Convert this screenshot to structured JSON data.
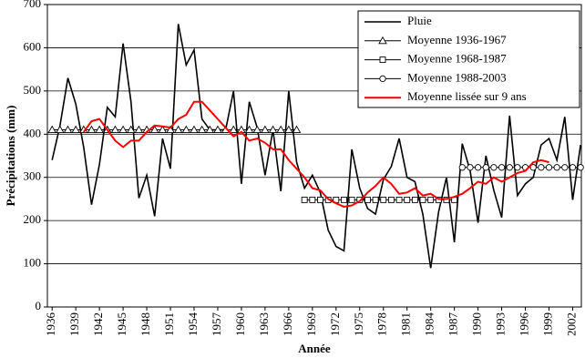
{
  "chart_data": {
    "type": "line",
    "x_label": "Année",
    "y_label": "Précipitations (mm)",
    "x": [
      1936,
      1937,
      1938,
      1939,
      1940,
      1941,
      1942,
      1943,
      1944,
      1945,
      1946,
      1947,
      1948,
      1949,
      1950,
      1951,
      1952,
      1953,
      1954,
      1955,
      1956,
      1957,
      1958,
      1959,
      1960,
      1961,
      1962,
      1963,
      1964,
      1965,
      1966,
      1967,
      1968,
      1969,
      1970,
      1971,
      1972,
      1973,
      1974,
      1975,
      1976,
      1977,
      1978,
      1979,
      1980,
      1981,
      1982,
      1983,
      1984,
      1985,
      1986,
      1987,
      1988,
      1989,
      1990,
      1991,
      1992,
      1993,
      1994,
      1995,
      1996,
      1997,
      1998,
      1999,
      2000,
      2001,
      2002,
      2003
    ],
    "series": [
      {
        "name": "Pluie",
        "color": "#000000",
        "marker": "none",
        "width": 1.6,
        "values": [
          340,
          420,
          530,
          470,
          370,
          237,
          330,
          462,
          440,
          610,
          475,
          252,
          305,
          210,
          390,
          320,
          655,
          560,
          595,
          435,
          410,
          410,
          410,
          500,
          285,
          475,
          415,
          305,
          410,
          268,
          500,
          335,
          275,
          305,
          265,
          178,
          140,
          130,
          365,
          275,
          228,
          215,
          295,
          325,
          390,
          300,
          290,
          215,
          90,
          220,
          300,
          150,
          378,
          315,
          195,
          350,
          270,
          207,
          443,
          258,
          285,
          300,
          375,
          390,
          340,
          440,
          248,
          375
        ]
      },
      {
        "name": "Moyenne 1936-1967",
        "color": "#000000",
        "marker": "triangle",
        "width": 1,
        "values": [
          410,
          410,
          410,
          410,
          410,
          410,
          410,
          410,
          410,
          410,
          410,
          410,
          410,
          410,
          410,
          410,
          410,
          410,
          410,
          410,
          410,
          410,
          410,
          410,
          410,
          410,
          410,
          410,
          410,
          410,
          410,
          410,
          null,
          null,
          null,
          null,
          null,
          null,
          null,
          null,
          null,
          null,
          null,
          null,
          null,
          null,
          null,
          null,
          null,
          null,
          null,
          null,
          null,
          null,
          null,
          null,
          null,
          null,
          null,
          null,
          null,
          null,
          null,
          null,
          null,
          null,
          null,
          null
        ]
      },
      {
        "name": "Moyenne 1968-1987",
        "color": "#000000",
        "marker": "square",
        "width": 1,
        "values": [
          null,
          null,
          null,
          null,
          null,
          null,
          null,
          null,
          null,
          null,
          null,
          null,
          null,
          null,
          null,
          null,
          null,
          null,
          null,
          null,
          null,
          null,
          null,
          null,
          null,
          null,
          null,
          null,
          null,
          null,
          null,
          null,
          248,
          248,
          248,
          248,
          248,
          248,
          248,
          248,
          248,
          248,
          248,
          248,
          248,
          248,
          248,
          248,
          248,
          248,
          248,
          248,
          null,
          null,
          null,
          null,
          null,
          null,
          null,
          null,
          null,
          null,
          null,
          null,
          null,
          null,
          null,
          null
        ]
      },
      {
        "name": "Moyenne 1988-2003",
        "color": "#000000",
        "marker": "circle",
        "width": 1,
        "values": [
          null,
          null,
          null,
          null,
          null,
          null,
          null,
          null,
          null,
          null,
          null,
          null,
          null,
          null,
          null,
          null,
          null,
          null,
          null,
          null,
          null,
          null,
          null,
          null,
          null,
          null,
          null,
          null,
          null,
          null,
          null,
          null,
          null,
          null,
          null,
          null,
          null,
          null,
          null,
          null,
          null,
          null,
          null,
          null,
          null,
          null,
          null,
          null,
          null,
          null,
          null,
          null,
          323,
          323,
          323,
          323,
          323,
          323,
          323,
          323,
          323,
          323,
          323,
          323,
          323,
          323,
          323,
          323
        ]
      },
      {
        "name": "Moyenne lissée sur 9 ans",
        "color": "#ff0000",
        "marker": "none",
        "width": 2,
        "values": [
          null,
          null,
          null,
          null,
          405,
          430,
          435,
          410,
          385,
          370,
          385,
          385,
          405,
          420,
          418,
          415,
          435,
          445,
          475,
          475,
          455,
          435,
          415,
          395,
          405,
          385,
          390,
          380,
          365,
          365,
          340,
          320,
          300,
          275,
          270,
          250,
          240,
          232,
          235,
          245,
          265,
          280,
          300,
          285,
          262,
          265,
          275,
          258,
          262,
          250,
          250,
          255,
          262,
          275,
          290,
          285,
          300,
          290,
          300,
          310,
          315,
          335,
          340,
          335,
          null,
          null,
          null,
          null
        ]
      }
    ],
    "xlim": [
      1935.4,
      2003.1
    ],
    "xticks": [
      1936,
      1939,
      1942,
      1945,
      1948,
      1951,
      1954,
      1957,
      1960,
      1963,
      1966,
      1969,
      1972,
      1975,
      1978,
      1981,
      1984,
      1987,
      1990,
      1993,
      1996,
      1999,
      2002
    ],
    "ylim": [
      0,
      700
    ],
    "yticks": [
      0,
      100,
      200,
      300,
      400,
      500,
      600,
      700
    ],
    "grid": true,
    "legend": "top-right"
  }
}
